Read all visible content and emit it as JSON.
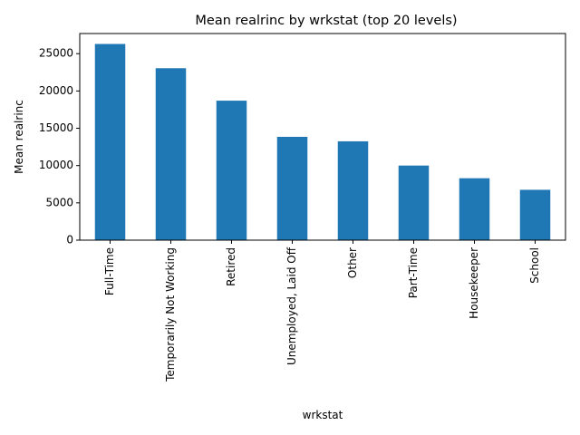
{
  "chart_data": {
    "type": "bar",
    "title": "Mean realrinc by wrkstat (top 20 levels)",
    "xlabel": "wrkstat",
    "ylabel": "Mean realrinc",
    "categories": [
      "Full-Time",
      "Temporarily Not Working",
      "Retired",
      "Unemployed, Laid Off",
      "Other",
      "Part-Time",
      "Housekeeper",
      "School"
    ],
    "values": [
      26300,
      23050,
      18700,
      13850,
      13250,
      10000,
      8300,
      6750
    ],
    "ylim": [
      0,
      27700
    ],
    "yticks": [
      0,
      5000,
      10000,
      15000,
      20000,
      25000
    ],
    "ytick_labels": [
      "0",
      "5000",
      "10000",
      "15000",
      "20000",
      "25000"
    ],
    "grid": false,
    "legend": "none",
    "bar_color": "#1f77b4"
  }
}
